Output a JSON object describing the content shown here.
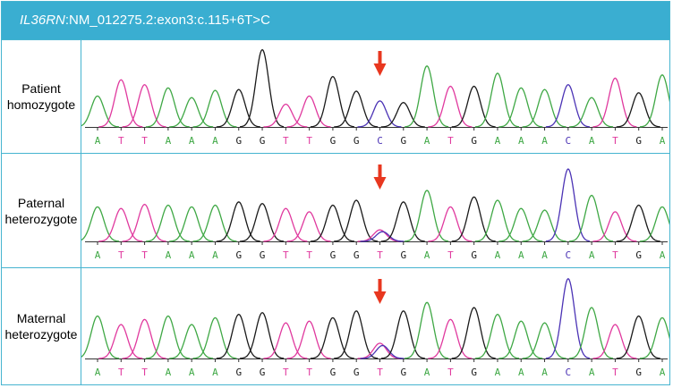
{
  "title": {
    "gene": "IL36RN",
    "variant": ":NM_012275.2:exon3:c.115+6T>C"
  },
  "colors": {
    "A": "#3fa845",
    "T": "#e0399e",
    "G": "#1a1a1a",
    "C": "#4b33b5",
    "arrow": "#e8371f",
    "border": "#46b4d0",
    "header": "#3aaed1"
  },
  "panels": [
    {
      "label_line1": "Patient",
      "label_line2": "homozygote",
      "bases": [
        "A",
        "T",
        "T",
        "A",
        "A",
        "A",
        "G",
        "G",
        "T",
        "T",
        "G",
        "G",
        "C",
        "G",
        "A",
        "T",
        "G",
        "A",
        "A",
        "A",
        "C",
        "A",
        "T",
        "G",
        "A"
      ],
      "heights": [
        0.38,
        0.58,
        0.52,
        0.48,
        0.36,
        0.45,
        0.46,
        0.95,
        0.28,
        0.38,
        0.62,
        0.44,
        0.32,
        0.3,
        0.75,
        0.5,
        0.5,
        0.66,
        0.48,
        0.46,
        0.52,
        0.36,
        0.6,
        0.42,
        0.64
      ],
      "variant_index": 12,
      "variant_secondary": null,
      "arrow_index": 12
    },
    {
      "label_line1": "Paternal",
      "label_line2": "heterozygote",
      "bases": [
        "A",
        "T",
        "T",
        "A",
        "A",
        "A",
        "G",
        "G",
        "T",
        "T",
        "G",
        "G",
        "T",
        "G",
        "A",
        "T",
        "G",
        "A",
        "A",
        "A",
        "C",
        "A",
        "T",
        "G",
        "A"
      ],
      "heights": [
        0.42,
        0.4,
        0.45,
        0.44,
        0.42,
        0.44,
        0.48,
        0.46,
        0.4,
        0.36,
        0.44,
        0.5,
        0.14,
        0.48,
        0.62,
        0.42,
        0.54,
        0.5,
        0.4,
        0.38,
        0.88,
        0.56,
        0.36,
        0.44,
        0.42
      ],
      "variant_index": 12,
      "variant_secondary": "C",
      "arrow_index": 12
    },
    {
      "label_line1": "Maternal",
      "label_line2": "heterozygote",
      "bases": [
        "A",
        "T",
        "T",
        "A",
        "A",
        "A",
        "G",
        "G",
        "T",
        "T",
        "G",
        "G",
        "T",
        "G",
        "A",
        "T",
        "G",
        "A",
        "A",
        "A",
        "C",
        "A",
        "T",
        "G",
        "A"
      ],
      "heights": [
        0.5,
        0.4,
        0.46,
        0.5,
        0.4,
        0.48,
        0.52,
        0.54,
        0.42,
        0.44,
        0.48,
        0.56,
        0.18,
        0.56,
        0.66,
        0.46,
        0.6,
        0.52,
        0.44,
        0.42,
        0.94,
        0.6,
        0.4,
        0.5,
        0.48
      ],
      "variant_index": 12,
      "variant_secondary": "C",
      "arrow_index": 12
    }
  ]
}
